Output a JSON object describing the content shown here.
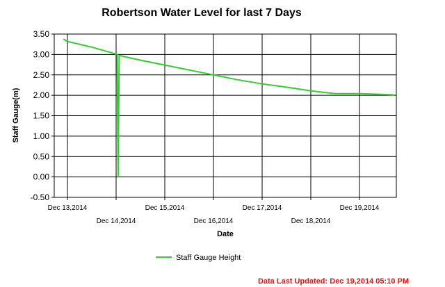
{
  "chart_data": {
    "type": "line",
    "title": "Robertson Water Level for last 7 Days",
    "xlabel": "Date",
    "ylabel": "Staff Gauge(m)",
    "ylim": [
      -0.5,
      3.5
    ],
    "yticks": [
      "3.50",
      "3.00",
      "2.50",
      "2.00",
      "1.50",
      "1.00",
      "0.50",
      "0.00",
      "-0.50"
    ],
    "xticks": [
      {
        "label": "Dec 13,2014",
        "row": "upper"
      },
      {
        "label": "Dec 14,2014",
        "row": "lower"
      },
      {
        "label": "Dec 15,2014",
        "row": "upper"
      },
      {
        "label": "Dec 16,2014",
        "row": "lower"
      },
      {
        "label": "Dec 17,2014",
        "row": "upper"
      },
      {
        "label": "Dec 18,2014",
        "row": "lower"
      },
      {
        "label": "Dec 19,2014",
        "row": "upper"
      }
    ],
    "grid": true,
    "legend_position": "bottom",
    "series": [
      {
        "name": "Staff Gauge Height",
        "color": "#33cc33",
        "x": [
          "Dec 12,2014 22:00",
          "Dec 13,2014 00:00",
          "Dec 13,2014 12:00",
          "Dec 14,2014 00:00",
          "Dec 14,2014 00:30",
          "Dec 14,2014 01:00",
          "Dec 14,2014 01:30",
          "Dec 14,2014 02:00",
          "Dec 14,2014 12:00",
          "Dec 15,2014 00:00",
          "Dec 15,2014 12:00",
          "Dec 16,2014 00:00",
          "Dec 16,2014 12:00",
          "Dec 17,2014 00:00",
          "Dec 17,2014 12:00",
          "Dec 18,2014 00:00",
          "Dec 18,2014 12:00",
          "Dec 19,2014 00:00",
          "Dec 19,2014 12:00",
          "Dec 19,2014 17:10"
        ],
        "values": [
          3.38,
          3.32,
          3.18,
          3.01,
          3.0,
          0.0,
          2.97,
          2.97,
          2.86,
          2.74,
          2.62,
          2.5,
          2.38,
          2.28,
          2.2,
          2.11,
          2.04,
          2.04,
          2.02,
          2.01
        ]
      }
    ]
  },
  "footer": {
    "last_updated": "Data Last Updated: Dec 19,2014 05:10 PM"
  }
}
